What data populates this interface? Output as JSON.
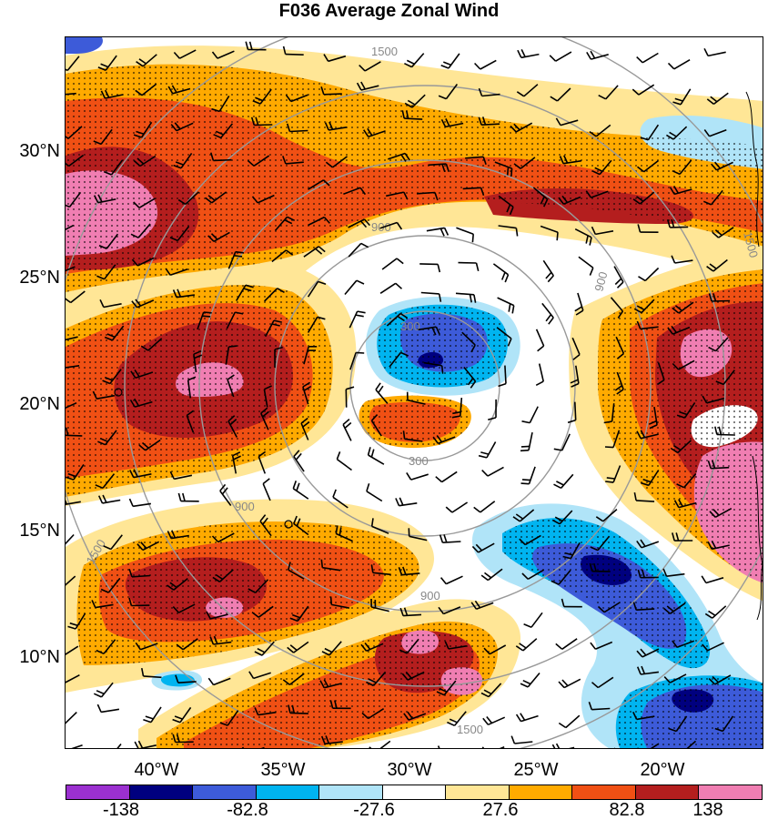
{
  "title": "F036 Average Zonal Wind",
  "lat_labels": [
    "30°N",
    "25°N",
    "20°N",
    "15°N",
    "10°N"
  ],
  "lon_labels": [
    "40°W",
    "35°W",
    "30°W",
    "25°W",
    "20°W"
  ],
  "colorbar": {
    "labels": [
      "-138",
      "-82.8",
      "-27.6",
      "27.6",
      "82.8",
      "138"
    ],
    "colors": [
      "#9b30d0",
      "#00007f",
      "#3d5bd9",
      "#00b4f0",
      "#b0e4f8",
      "#ffffff",
      "#ffe696",
      "#ffaa00",
      "#f05014",
      "#b41e1e",
      "#f07eb2"
    ]
  },
  "range_rings": [
    "300",
    "900",
    "1500",
    "900",
    "300",
    "900",
    "1500",
    "1500",
    "900",
    "1500"
  ],
  "colors": {
    "ring": "#999999",
    "strong_pos": "#b41e1e",
    "pos": "#f05014",
    "weak_pos": "#ffaa00",
    "neutral_pos": "#ffe696",
    "weak_neg": "#b0e4f8",
    "neg": "#00b4f0",
    "strong_neg": "#3d5bd9",
    "extreme_neg": "#00007f",
    "extreme_pos": "#f07eb2"
  }
}
